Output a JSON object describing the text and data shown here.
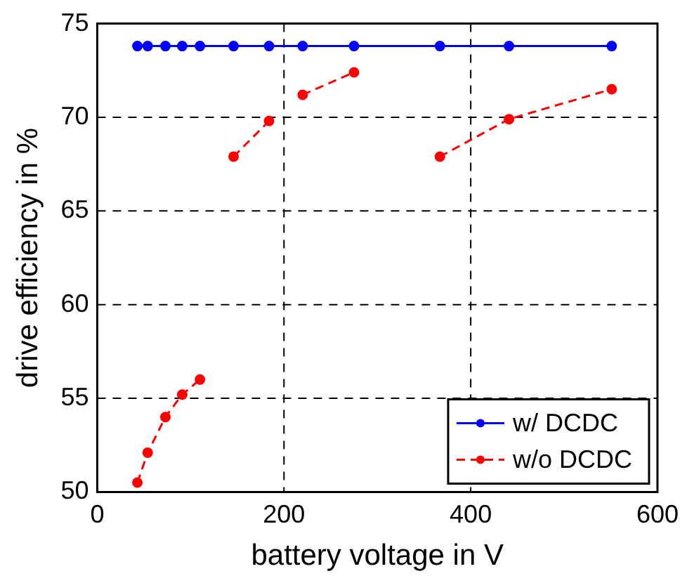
{
  "chart_data": {
    "type": "line",
    "xlabel": "battery voltage in V",
    "ylabel": "drive efficiency in %",
    "xlim": [
      0,
      600
    ],
    "xticks": [
      0,
      200,
      400,
      600
    ],
    "ylim": [
      50,
      75
    ],
    "yticks": [
      50,
      55,
      60,
      65,
      70,
      75
    ],
    "grid": true,
    "legend": "bottom right",
    "marker": "circle",
    "series": [
      {
        "name": "w/ DCDC",
        "color": "#0000ff",
        "line_style": "solid",
        "x": [
          43,
          54,
          73,
          91,
          110,
          146,
          184,
          220,
          275,
          367,
          441,
          551
        ],
        "values": [
          73.8,
          73.8,
          73.8,
          73.8,
          73.8,
          73.8,
          73.8,
          73.8,
          73.8,
          73.8,
          73.8,
          73.8
        ]
      },
      {
        "name": "w/o DCDC",
        "color": "#ff0000",
        "line_style": "dashed",
        "x": [
          43,
          54,
          73,
          91,
          110
        ],
        "values": [
          50.5,
          52.1,
          54.0,
          55.2,
          56.0
        ]
      },
      {
        "color": "#ff0000",
        "line_style": "dashed",
        "x": [
          146,
          184
        ],
        "values": [
          67.9,
          69.8
        ]
      },
      {
        "color": "#ff0000",
        "line_style": "dashed",
        "x": [
          220,
          275
        ],
        "values": [
          71.2,
          72.4
        ]
      },
      {
        "color": "#ff0000",
        "line_style": "dashed",
        "x": [
          367,
          441,
          551
        ],
        "values": [
          67.9,
          69.9,
          71.5
        ]
      }
    ]
  }
}
